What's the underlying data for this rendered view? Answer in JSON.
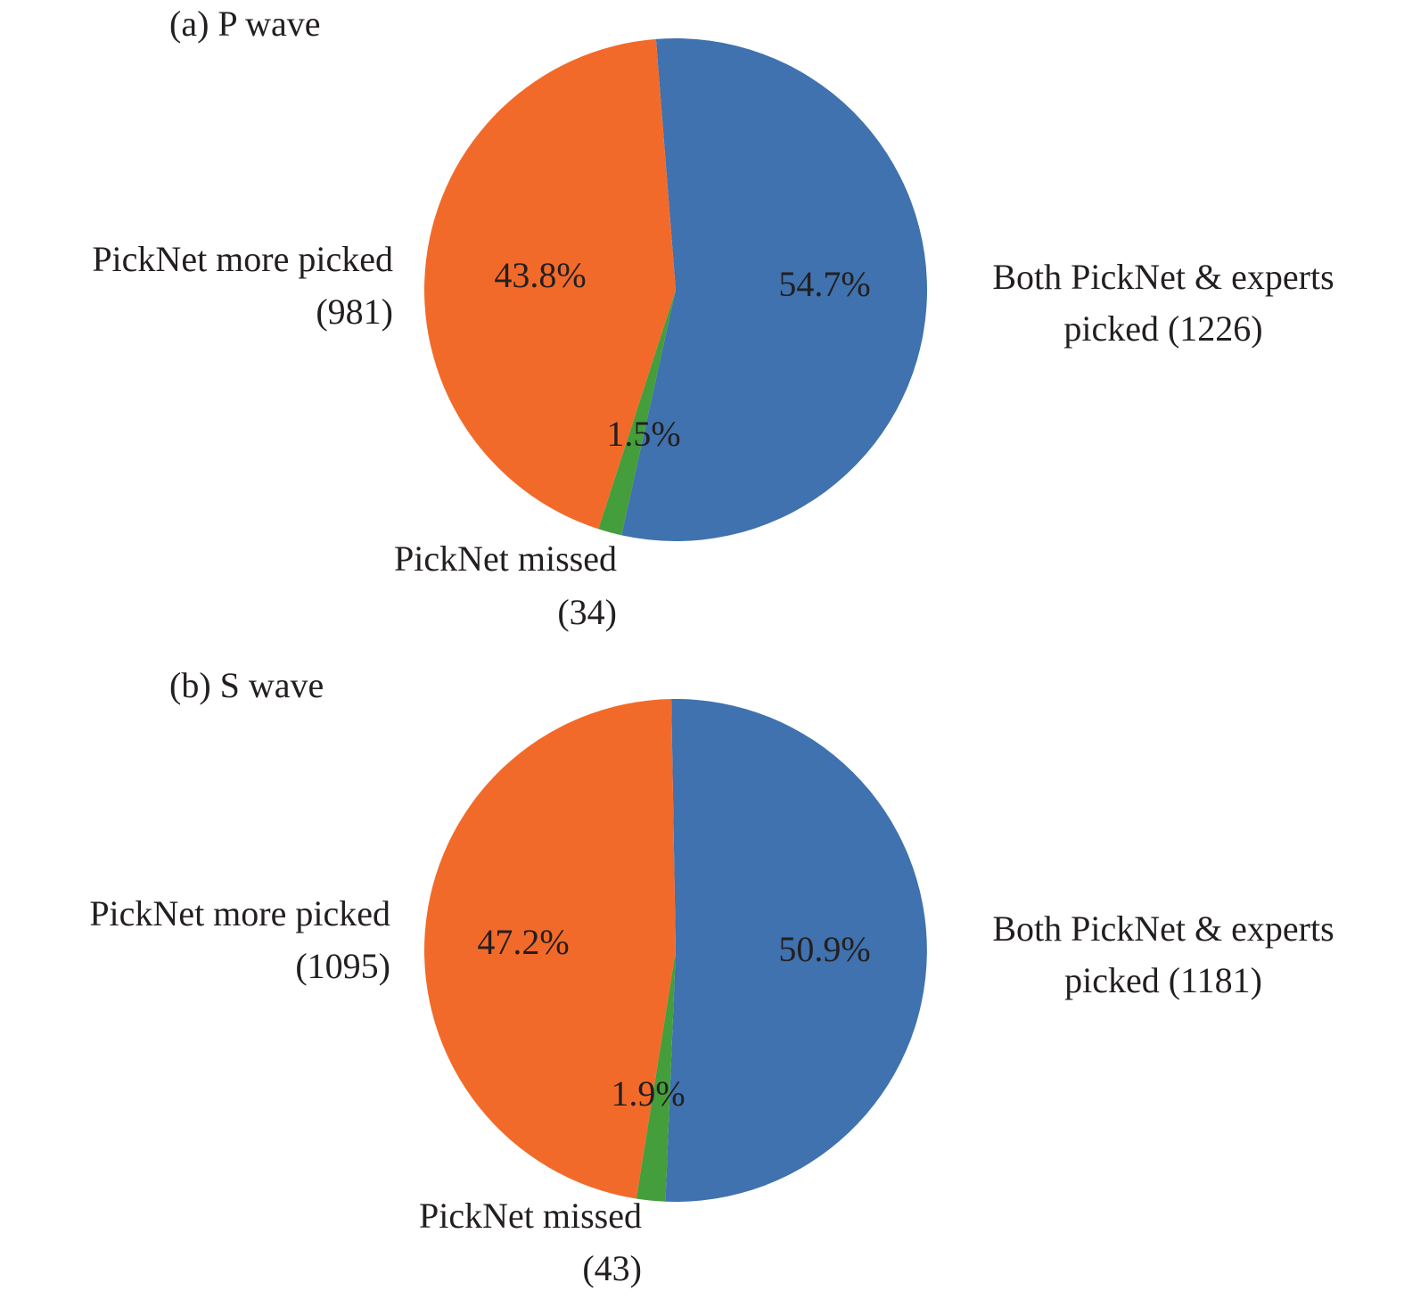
{
  "chart_data": [
    {
      "type": "pie",
      "title": "(a) P wave",
      "slices": [
        {
          "category": "both",
          "label_lines": [
            "Both PickNet & experts",
            "picked (1226)"
          ],
          "count": 1226,
          "percent": 54.7,
          "percent_label": "54.7%",
          "color": "#3f72ae"
        },
        {
          "category": "missed",
          "label_lines": [
            "PickNet missed",
            "(34)"
          ],
          "count": 34,
          "percent": 1.5,
          "percent_label": "1.5%",
          "color": "#449e3b"
        },
        {
          "category": "more",
          "label_lines": [
            "PickNet more picked",
            "(981)"
          ],
          "count": 981,
          "percent": 43.8,
          "percent_label": "43.8%",
          "color": "#f26a2a"
        }
      ]
    },
    {
      "type": "pie",
      "title": "(b) S wave",
      "slices": [
        {
          "category": "both",
          "label_lines": [
            "Both PickNet & experts",
            "picked (1181)"
          ],
          "count": 1181,
          "percent": 50.9,
          "percent_label": "50.9%",
          "color": "#3f72ae"
        },
        {
          "category": "missed",
          "label_lines": [
            "PickNet missed",
            "(43)"
          ],
          "count": 43,
          "percent": 1.9,
          "percent_label": "1.9%",
          "color": "#449e3b"
        },
        {
          "category": "more",
          "label_lines": [
            "PickNet more picked",
            "(1095)"
          ],
          "count": 1095,
          "percent": 47.2,
          "percent_label": "47.2%",
          "color": "#f26a2a"
        }
      ]
    }
  ]
}
